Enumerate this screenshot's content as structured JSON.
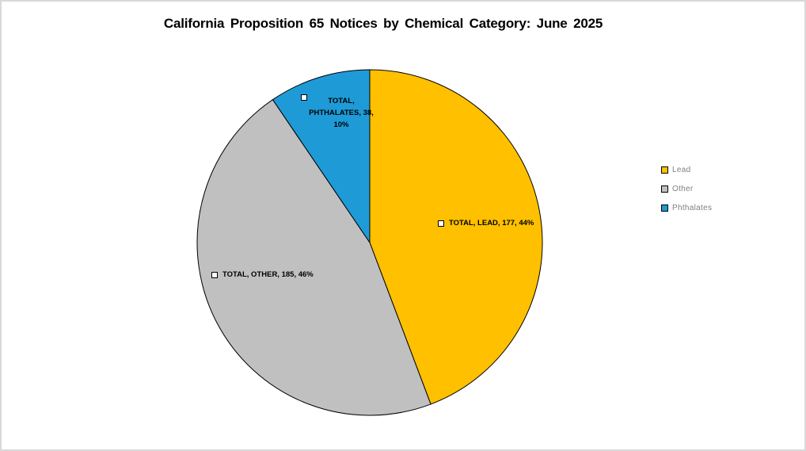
{
  "chart_data": {
    "type": "pie",
    "title": "California Proposition 65 Notices by Chemical Category: June 2025",
    "series_name": "TOTAL",
    "categories": [
      "Lead",
      "Other",
      "Phthalates"
    ],
    "values": [
      177,
      185,
      38
    ],
    "percent_labels": [
      "44%",
      "46%",
      "10%"
    ],
    "colors": [
      "#FFC000",
      "#C0C0C0",
      "#1E9BD7"
    ],
    "slice_border_color": "#000000",
    "start_angle_deg": 0,
    "direction": "clockwise",
    "legend_position": "right",
    "data_labels": {
      "lead": "TOTAL, LEAD, 177, 44%",
      "other": "TOTAL, OTHER, 185, 46%",
      "phthalates": "TOTAL, PHTHALATES, 38, 10%"
    }
  }
}
